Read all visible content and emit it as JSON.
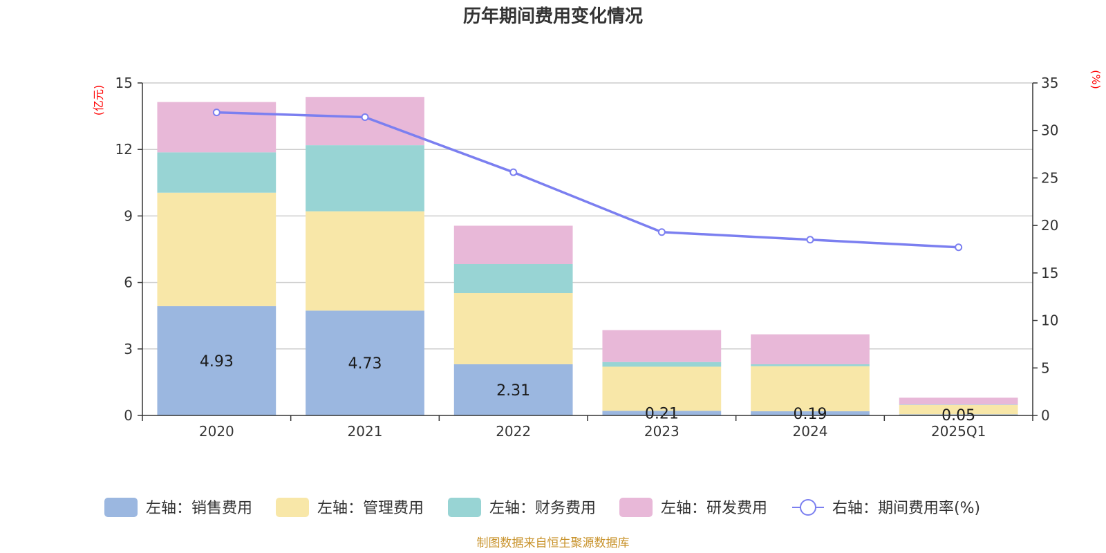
{
  "chart_data": {
    "type": "bar",
    "stacked": true,
    "title": "历年期间费用变化情况",
    "categories": [
      "2020",
      "2021",
      "2022",
      "2023",
      "2024",
      "2025Q1"
    ],
    "y_left": {
      "unit": "(亿元)",
      "range": [
        0,
        15
      ],
      "ticks": [
        "0",
        "3",
        "6",
        "9",
        "12",
        "15"
      ]
    },
    "y_right": {
      "unit": "(%)",
      "range": [
        0,
        35
      ],
      "ticks": [
        "0",
        "5",
        "10",
        "15",
        "20",
        "25",
        "30",
        "35"
      ]
    },
    "series": [
      {
        "name": "左轴：销售费用",
        "color": "#9bb7e0",
        "axis": "left",
        "values": [
          4.93,
          4.73,
          2.31,
          0.21,
          0.19,
          0.05
        ],
        "labels": [
          "4.93",
          "4.73",
          "2.31",
          "0.21",
          "0.19",
          "0.05"
        ]
      },
      {
        "name": "左轴：管理费用",
        "color": "#f8e7a8",
        "axis": "left",
        "values": [
          5.12,
          4.48,
          3.21,
          1.99,
          2.03,
          0.42
        ]
      },
      {
        "name": "左轴：财务费用",
        "color": "#98d4d4",
        "axis": "left",
        "values": [
          1.82,
          2.98,
          1.31,
          0.21,
          0.09,
          0.02
        ]
      },
      {
        "name": "左轴：研发费用",
        "color": "#e8b8d8",
        "axis": "left",
        "values": [
          2.27,
          2.18,
          1.73,
          1.44,
          1.35,
          0.31
        ]
      }
    ],
    "line": {
      "name": "右轴：期间费用率(%)",
      "color": "#7b7ff0",
      "axis": "right",
      "values": [
        31.9,
        31.4,
        25.6,
        19.3,
        18.5,
        17.7
      ]
    },
    "grid": true,
    "legend_position": "bottom"
  },
  "source": "制图数据来自恒生聚源数据库"
}
